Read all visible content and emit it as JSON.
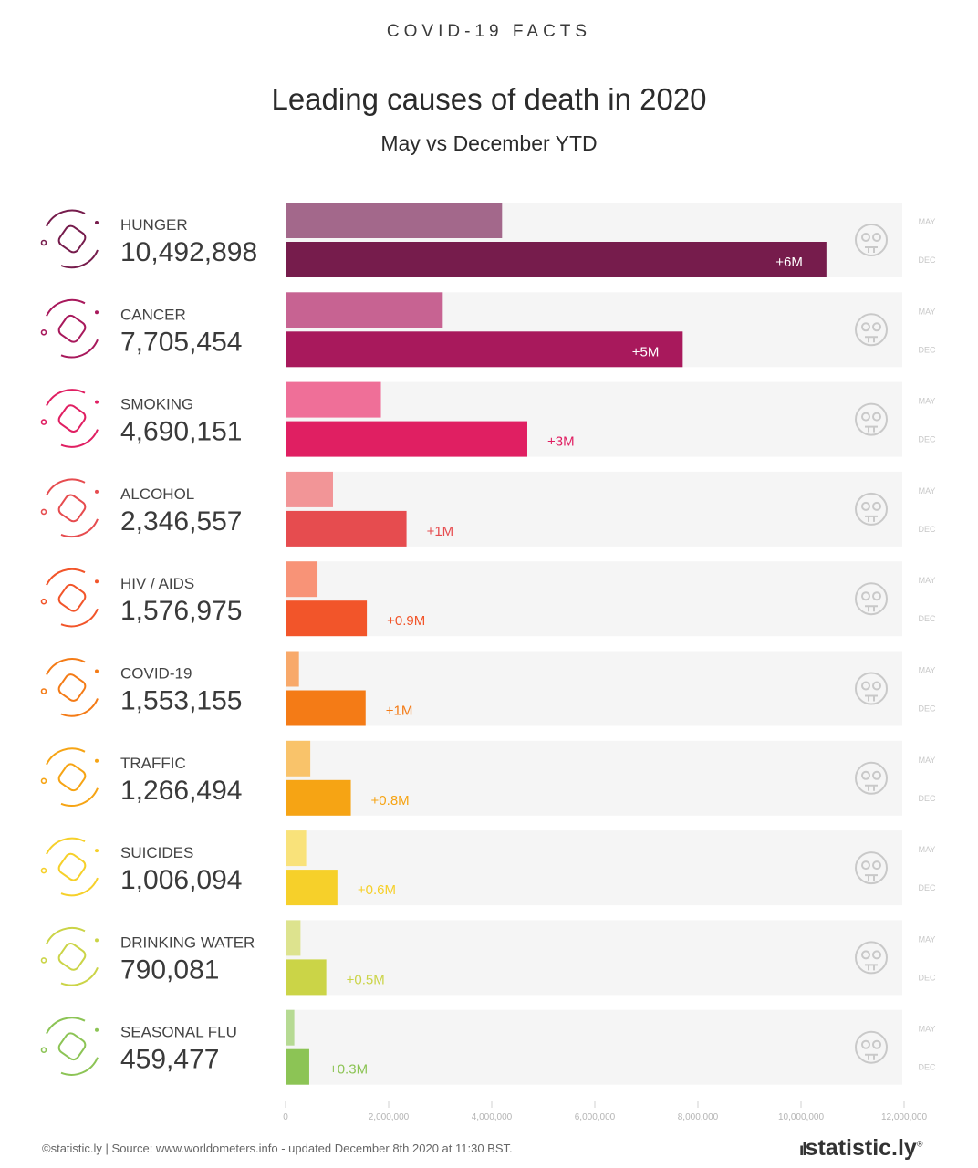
{
  "header": {
    "kicker": "COVID-19 FACTS",
    "title": "Leading causes of death in 2020",
    "subtitle": "May vs December YTD"
  },
  "footer": {
    "source": "©statistic.ly | Source: www.worldometers.info - updated December 8th 2020 at 11:30 BST.",
    "brand": "statistic.ly",
    "brand_mark": "ıl",
    "brand_symbol": "®"
  },
  "chart_data": {
    "type": "bar",
    "orientation": "horizontal",
    "xlim": [
      0,
      12000000
    ],
    "x_ticks": [
      0,
      2000000,
      4000000,
      6000000,
      8000000,
      10000000,
      12000000
    ],
    "x_tick_labels": [
      "0",
      "2,000,000",
      "4,000,000",
      "6,000,000",
      "8,000,000",
      "10,000,000",
      "12,000,000"
    ],
    "row_labels": [
      "MAY",
      "DEC"
    ],
    "grid": false,
    "series": [
      {
        "name": "MAY",
        "values": [
          4200000,
          3050000,
          1850000,
          920000,
          620000,
          260000,
          480000,
          400000,
          290000,
          170000
        ]
      },
      {
        "name": "DEC",
        "values": [
          10492898,
          7705454,
          4690151,
          2346557,
          1576975,
          1553155,
          1266494,
          1006094,
          790081,
          459477
        ]
      }
    ],
    "categories": [
      {
        "name": "HUNGER",
        "total": "10,492,898",
        "increase": "+6M",
        "color_dec": "#761c4c",
        "color_may": "#a3688b",
        "icon": "hunger-icon"
      },
      {
        "name": "CANCER",
        "total": "7,705,454",
        "increase": "+5M",
        "color_dec": "#a8195c",
        "color_may": "#c76392",
        "icon": "cancer-icon"
      },
      {
        "name": "SMOKING",
        "total": "4,690,151",
        "increase": "+3M",
        "color_dec": "#e01f62",
        "color_may": "#ef6f98",
        "icon": "smoking-icon"
      },
      {
        "name": "ALCOHOL",
        "total": "2,346,557",
        "increase": "+1M",
        "color_dec": "#e64c4f",
        "color_may": "#f29597",
        "icon": "wine-glass-icon"
      },
      {
        "name": "HIV / AIDS",
        "total": "1,576,975",
        "increase": "+0.9M",
        "color_dec": "#f2552a",
        "color_may": "#f89377",
        "icon": "syringe-icon"
      },
      {
        "name": "COVID-19",
        "total": "1,553,155",
        "increase": "+1M",
        "color_dec": "#f47b16",
        "color_may": "#f8a96a",
        "icon": "virus-icon"
      },
      {
        "name": "TRAFFIC",
        "total": "1,266,494",
        "increase": "+0.8M",
        "color_dec": "#f6a414",
        "color_may": "#f9c36a",
        "icon": "car-icon"
      },
      {
        "name": "SUICIDES",
        "total": "1,006,094",
        "increase": "+0.6M",
        "color_dec": "#f6d02a",
        "color_may": "#f9e27a",
        "icon": "sad-face-icon"
      },
      {
        "name": "DRINKING WATER",
        "total": "790,081",
        "increase": "+0.5M",
        "color_dec": "#cbd447",
        "color_may": "#dde38e",
        "icon": "water-drop-icon"
      },
      {
        "name": "SEASONAL FLU",
        "total": "459,477",
        "increase": "+0.3M",
        "color_dec": "#8cc455",
        "color_may": "#b6da93",
        "icon": "sneeze-face-icon"
      }
    ]
  }
}
